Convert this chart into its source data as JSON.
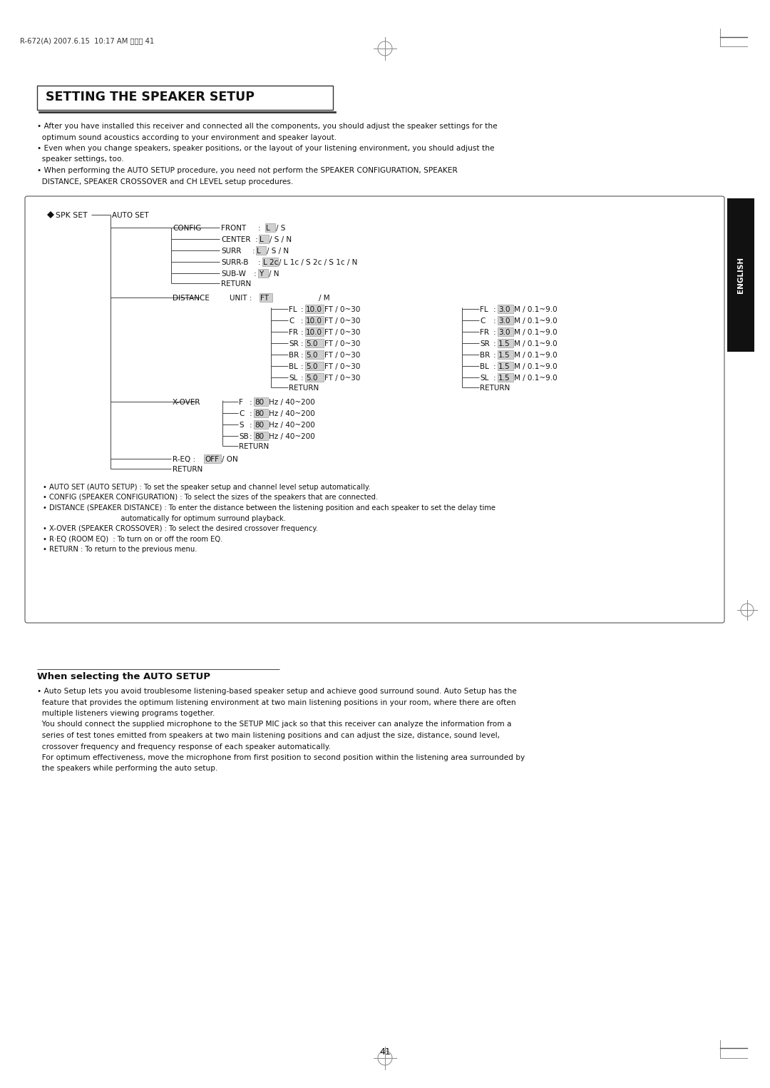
{
  "bg_color": "#ffffff",
  "page_width": 10.8,
  "page_height": 15.25,
  "header_text": "R-672(A) 2007.6.15  10:17 AM 페이지 41",
  "section_title": "SETTING THE SPEAKER SETUP",
  "intro_lines": [
    "• After you have installed this receiver and connected all the components, you should adjust the speaker settings for the",
    "  optimum sound acoustics according to your environment and speaker layout.",
    "• Even when you change speakers, speaker positions, or the layout of your listening environment, you should adjust the",
    "  speaker settings, too.",
    "• When performing the AUTO SETUP procedure, you need not perform the SPEAKER CONFIGURATION, SPEAKER",
    "  DISTANCE, SPEAKER CROSSOVER and CH LEVEL setup procedures."
  ],
  "footer_notes": [
    "• AUTO SET (AUTO SETUP) : To set the speaker setup and channel level setup automatically.",
    "• CONFIG (SPEAKER CONFIGURATION) : To select the sizes of the speakers that are connected.",
    "• DISTANCE (SPEAKER DISTANCE) : To enter the distance between the listening position and each speaker to set the delay time",
    "                                   automatically for optimum surround playback.",
    "• X-OVER (SPEAKER CROSSOVER) : To select the desired crossover frequency.",
    "• R·EQ (ROOM EQ)  : To turn on or off the room EQ.",
    "• RETURN : To return to the previous menu."
  ],
  "auto_setup_title": "When selecting the AUTO SETUP",
  "auto_setup_lines": [
    "• Auto Setup lets you avoid troublesome listening-based speaker setup and achieve good surround sound. Auto Setup has the",
    "  feature that provides the optimum listening environment at two main listening positions in your room, where there are often",
    "  multiple listeners viewing programs together.",
    "  You should connect the supplied microphone to the SETUP MIC jack so that this receiver can analyze the information from a",
    "  series of test tones emitted from speakers at two main listening positions and can adjust the size, distance, sound level,",
    "  crossover frequency and frequency response of each speaker automatically.",
    "  For optimum effectiveness, move the microphone from first position to second position within the listening area surrounded by",
    "  the speakers while performing the auto setup."
  ],
  "english_tab": "ENGLISH",
  "page_number": "41"
}
